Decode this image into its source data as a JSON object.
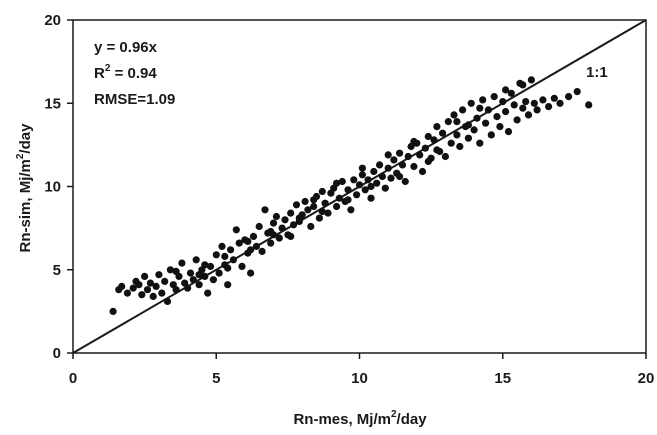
{
  "chart_data": {
    "type": "scatter",
    "title": "",
    "xlabel": {
      "pre": "Rn-mes, Mj/m",
      "sup": "2",
      "post": "/day"
    },
    "ylabel": {
      "pre": "Rn-sim, Mj/m",
      "sup": "2",
      "post": "/day"
    },
    "xlim": [
      0,
      20
    ],
    "ylim": [
      0,
      20
    ],
    "xticks": [
      "0",
      "5",
      "10",
      "15",
      "20"
    ],
    "yticks": [
      "0",
      "5",
      "10",
      "15",
      "20"
    ],
    "grid": false,
    "reference_line": {
      "label": "1:1",
      "slope": 1,
      "intercept": 0
    },
    "annotations": {
      "equation": "y = 0.96x",
      "r2_pre": "R",
      "r2_sup": "2",
      "r2_post": " = 0.94",
      "rmse": "RMSE=1.09"
    },
    "marker_color": "#111111",
    "series": [
      {
        "points": [
          [
            1.4,
            2.5
          ],
          [
            1.6,
            3.8
          ],
          [
            1.7,
            4.0
          ],
          [
            1.9,
            3.6
          ],
          [
            2.1,
            3.9
          ],
          [
            2.2,
            4.3
          ],
          [
            2.4,
            3.5
          ],
          [
            2.5,
            4.6
          ],
          [
            2.6,
            3.8
          ],
          [
            2.7,
            4.2
          ],
          [
            2.8,
            3.4
          ],
          [
            2.9,
            4.0
          ],
          [
            3.0,
            4.7
          ],
          [
            3.1,
            3.6
          ],
          [
            3.2,
            4.3
          ],
          [
            3.3,
            3.1
          ],
          [
            3.4,
            5.0
          ],
          [
            3.5,
            4.1
          ],
          [
            3.6,
            3.8
          ],
          [
            3.7,
            4.6
          ],
          [
            3.8,
            5.4
          ],
          [
            3.9,
            4.2
          ],
          [
            4.0,
            3.9
          ],
          [
            4.1,
            4.8
          ],
          [
            4.2,
            4.4
          ],
          [
            4.3,
            5.6
          ],
          [
            4.4,
            4.1
          ],
          [
            4.5,
            5.0
          ],
          [
            4.6,
            4.6
          ],
          [
            4.7,
            3.6
          ],
          [
            4.8,
            5.2
          ],
          [
            4.9,
            4.4
          ],
          [
            5.0,
            5.9
          ],
          [
            5.1,
            4.8
          ],
          [
            5.2,
            6.4
          ],
          [
            5.3,
            5.3
          ],
          [
            5.4,
            4.1
          ],
          [
            5.5,
            6.2
          ],
          [
            5.6,
            5.6
          ],
          [
            5.7,
            7.4
          ],
          [
            5.8,
            6.6
          ],
          [
            5.9,
            5.2
          ],
          [
            6.0,
            6.8
          ],
          [
            6.1,
            6.0
          ],
          [
            6.2,
            4.8
          ],
          [
            6.3,
            7.0
          ],
          [
            6.4,
            6.4
          ],
          [
            6.5,
            7.6
          ],
          [
            6.6,
            6.1
          ],
          [
            6.7,
            8.6
          ],
          [
            6.8,
            7.2
          ],
          [
            6.9,
            6.6
          ],
          [
            7.0,
            7.8
          ],
          [
            7.1,
            8.2
          ],
          [
            7.2,
            6.9
          ],
          [
            7.3,
            7.5
          ],
          [
            7.4,
            8.0
          ],
          [
            7.5,
            7.1
          ],
          [
            7.6,
            8.4
          ],
          [
            7.7,
            7.7
          ],
          [
            7.8,
            8.9
          ],
          [
            7.9,
            7.9
          ],
          [
            8.0,
            8.3
          ],
          [
            8.1,
            9.1
          ],
          [
            8.2,
            8.6
          ],
          [
            8.3,
            7.6
          ],
          [
            8.4,
            8.8
          ],
          [
            8.5,
            9.4
          ],
          [
            8.6,
            8.1
          ],
          [
            8.7,
            9.7
          ],
          [
            8.8,
            9.0
          ],
          [
            8.9,
            8.4
          ],
          [
            9.0,
            9.6
          ],
          [
            9.1,
            9.9
          ],
          [
            9.2,
            8.8
          ],
          [
            9.3,
            9.3
          ],
          [
            9.4,
            10.3
          ],
          [
            9.5,
            9.1
          ],
          [
            9.6,
            9.8
          ],
          [
            9.7,
            8.6
          ],
          [
            9.8,
            10.4
          ],
          [
            9.9,
            9.5
          ],
          [
            10.0,
            10.1
          ],
          [
            10.1,
            10.7
          ],
          [
            10.2,
            9.8
          ],
          [
            10.3,
            10.4
          ],
          [
            10.4,
            9.3
          ],
          [
            10.5,
            10.9
          ],
          [
            10.6,
            10.2
          ],
          [
            10.7,
            11.3
          ],
          [
            10.8,
            10.6
          ],
          [
            10.9,
            9.9
          ],
          [
            11.0,
            11.1
          ],
          [
            11.1,
            10.5
          ],
          [
            11.2,
            11.6
          ],
          [
            11.3,
            10.8
          ],
          [
            11.4,
            12.0
          ],
          [
            11.5,
            11.3
          ],
          [
            11.6,
            10.3
          ],
          [
            11.7,
            11.8
          ],
          [
            11.8,
            12.4
          ],
          [
            11.9,
            11.2
          ],
          [
            12.0,
            12.6
          ],
          [
            12.1,
            11.9
          ],
          [
            12.2,
            10.9
          ],
          [
            12.3,
            12.3
          ],
          [
            12.4,
            13.0
          ],
          [
            12.5,
            11.7
          ],
          [
            12.6,
            12.8
          ],
          [
            12.7,
            13.6
          ],
          [
            12.8,
            12.1
          ],
          [
            12.9,
            13.2
          ],
          [
            13.0,
            11.8
          ],
          [
            13.1,
            13.9
          ],
          [
            13.2,
            12.6
          ],
          [
            13.3,
            14.3
          ],
          [
            13.4,
            13.1
          ],
          [
            13.5,
            12.4
          ],
          [
            13.6,
            14.6
          ],
          [
            13.7,
            13.6
          ],
          [
            13.8,
            12.9
          ],
          [
            13.9,
            15.0
          ],
          [
            14.0,
            13.4
          ],
          [
            14.1,
            14.1
          ],
          [
            14.2,
            12.6
          ],
          [
            14.3,
            15.2
          ],
          [
            14.4,
            13.8
          ],
          [
            14.5,
            14.6
          ],
          [
            14.6,
            13.1
          ],
          [
            14.7,
            15.4
          ],
          [
            14.8,
            14.2
          ],
          [
            14.9,
            13.6
          ],
          [
            15.0,
            15.1
          ],
          [
            15.1,
            14.5
          ],
          [
            15.2,
            13.3
          ],
          [
            15.3,
            15.6
          ],
          [
            15.4,
            14.9
          ],
          [
            15.5,
            14.0
          ],
          [
            15.6,
            16.2
          ],
          [
            15.7,
            14.7
          ],
          [
            15.8,
            15.1
          ],
          [
            15.9,
            14.3
          ],
          [
            16.0,
            16.4
          ],
          [
            16.1,
            15.0
          ],
          [
            16.2,
            14.6
          ],
          [
            16.4,
            15.2
          ],
          [
            16.6,
            14.8
          ],
          [
            16.8,
            15.3
          ],
          [
            17.0,
            15.0
          ],
          [
            17.3,
            15.4
          ],
          [
            17.6,
            15.7
          ],
          [
            18.0,
            14.9
          ],
          [
            2.3,
            4.1
          ],
          [
            3.6,
            4.9
          ],
          [
            4.6,
            5.3
          ],
          [
            5.3,
            5.8
          ],
          [
            6.1,
            6.7
          ],
          [
            6.9,
            7.3
          ],
          [
            7.6,
            7.0
          ],
          [
            8.4,
            9.2
          ],
          [
            9.2,
            10.2
          ],
          [
            10.1,
            11.1
          ],
          [
            11.0,
            11.9
          ],
          [
            11.9,
            12.7
          ],
          [
            12.7,
            12.2
          ],
          [
            13.4,
            13.9
          ],
          [
            14.2,
            14.7
          ],
          [
            15.1,
            15.8
          ],
          [
            15.7,
            16.1
          ],
          [
            13.8,
            13.7
          ],
          [
            12.4,
            11.5
          ],
          [
            11.4,
            10.6
          ],
          [
            10.4,
            10.0
          ],
          [
            9.6,
            9.2
          ],
          [
            8.7,
            8.5
          ],
          [
            7.9,
            8.1
          ],
          [
            7.0,
            7.1
          ],
          [
            6.2,
            6.2
          ],
          [
            5.4,
            5.1
          ],
          [
            4.4,
            4.7
          ]
        ]
      }
    ]
  }
}
